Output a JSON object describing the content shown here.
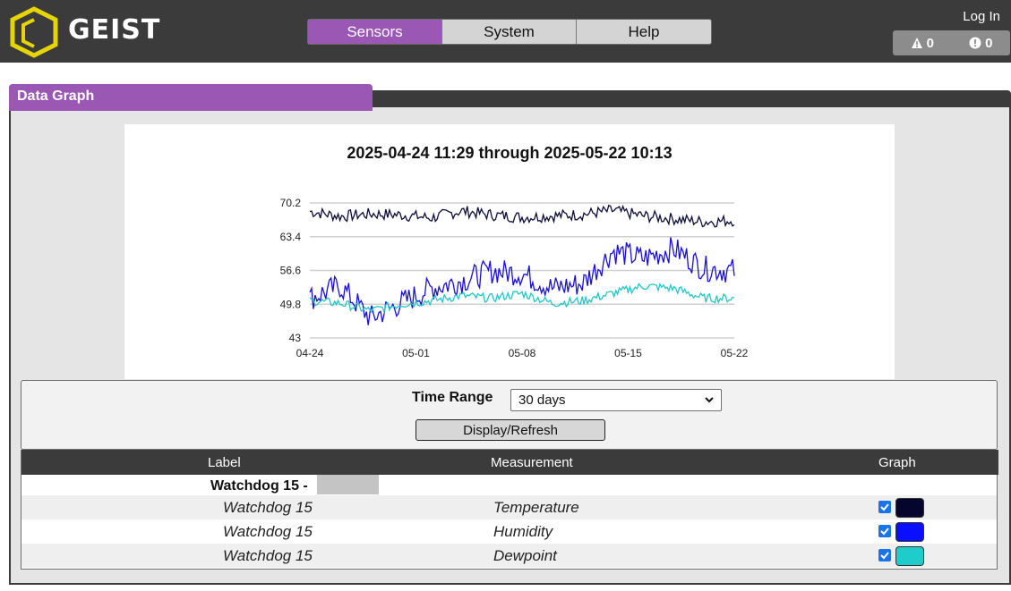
{
  "header": {
    "logo_text": "GEIST",
    "nav_tabs": [
      {
        "label": "Sensors",
        "active": true
      },
      {
        "label": "System",
        "active": false
      },
      {
        "label": "Help",
        "active": false
      }
    ],
    "login_label": "Log In",
    "alerts": [
      {
        "icon": "warning-triangle-icon",
        "count": "0"
      },
      {
        "icon": "alarm-circle-icon",
        "count": "0"
      }
    ],
    "colors": {
      "bar": "#3b3b3b",
      "accent": "#9a57b4",
      "logo": "#e6d500"
    }
  },
  "panel": {
    "title": "Data Graph"
  },
  "chart_data": {
    "type": "line",
    "title": "2025-04-24 11:29 through 2025-05-22 10:13",
    "x_ticks": [
      "04-24",
      "05-01",
      "05-08",
      "05-15",
      "05-22"
    ],
    "y_ticks": [
      70.2,
      63.4,
      56.6,
      49.8,
      43
    ],
    "ylim": [
      43,
      70.2
    ],
    "xlim": [
      "2025-04-24",
      "2025-05-22"
    ],
    "grid": true,
    "series": [
      {
        "name": "Temperature",
        "color": "#0d0d3a",
        "x": [
          "04-24",
          "04-26",
          "04-28",
          "04-30",
          "05-02",
          "05-04",
          "05-06",
          "05-08",
          "05-10",
          "05-12",
          "05-14",
          "05-16",
          "05-18",
          "05-20",
          "05-22"
        ],
        "values": [
          68.5,
          67.5,
          68.0,
          67.8,
          67.2,
          68.6,
          67.8,
          67.3,
          67.6,
          67.9,
          68.7,
          67.6,
          67.0,
          66.4,
          66.7
        ]
      },
      {
        "name": "Humidity",
        "color": "#1a0fd6",
        "x": [
          "04-24",
          "04-26",
          "04-28",
          "04-30",
          "05-02",
          "05-04",
          "05-06",
          "05-08",
          "05-10",
          "05-12",
          "05-14",
          "05-16",
          "05-18",
          "05-20",
          "05-22"
        ],
        "values": [
          51.0,
          53.5,
          47.0,
          50.0,
          53.0,
          54.5,
          56.5,
          56.0,
          53.0,
          54.0,
          60.5,
          59.0,
          61.0,
          57.0,
          56.5
        ]
      },
      {
        "name": "Dewpoint",
        "color": "#22c7c7",
        "x": [
          "04-24",
          "04-26",
          "04-28",
          "04-30",
          "05-02",
          "05-04",
          "05-06",
          "05-08",
          "05-10",
          "05-12",
          "05-14",
          "05-16",
          "05-18",
          "05-20",
          "05-22"
        ],
        "values": [
          50.5,
          50.0,
          48.5,
          49.8,
          50.5,
          51.5,
          51.0,
          52.0,
          50.0,
          50.5,
          52.0,
          53.5,
          53.0,
          51.0,
          51.0
        ]
      }
    ]
  },
  "controls": {
    "time_range_label": "Time Range",
    "time_range_value": "30 days",
    "refresh_label": "Display/Refresh"
  },
  "table": {
    "headers": {
      "label": "Label",
      "measurement": "Measurement",
      "graph": "Graph"
    },
    "group_label": "Watchdog 15 -",
    "rows": [
      {
        "label": "Watchdog 15",
        "measurement": "Temperature",
        "checked": true,
        "color": "#0d0d3a"
      },
      {
        "label": "Watchdog 15",
        "measurement": "Humidity",
        "checked": true,
        "color": "#0a10ff"
      },
      {
        "label": "Watchdog 15",
        "measurement": "Dewpoint",
        "checked": true,
        "color": "#1ecccc"
      }
    ]
  }
}
